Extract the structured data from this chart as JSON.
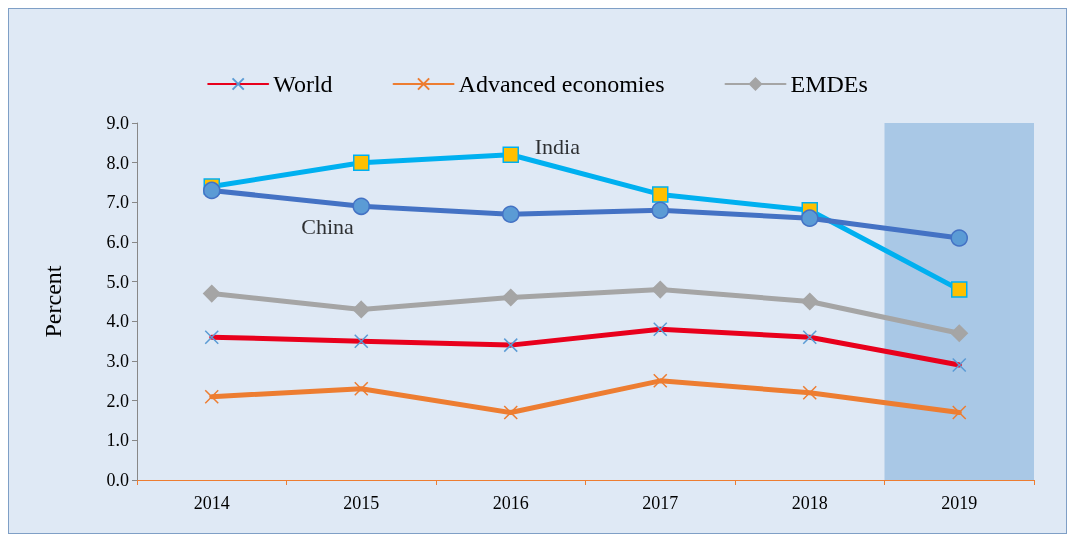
{
  "chart_data": {
    "type": "line",
    "ylabel": "Percent",
    "categories": [
      "2014",
      "2015",
      "2016",
      "2017",
      "2018",
      "2019"
    ],
    "series": [
      {
        "name": "World",
        "color": "#e8001c",
        "marker": "cross",
        "values": [
          3.6,
          3.5,
          3.4,
          3.8,
          3.6,
          2.9
        ]
      },
      {
        "name": "Advanced economies",
        "color": "#ed7d31",
        "marker": "cross",
        "values": [
          2.1,
          2.3,
          1.7,
          2.5,
          2.2,
          1.7
        ]
      },
      {
        "name": "EMDEs",
        "color": "#a5a5a5",
        "marker": "diamond",
        "values": [
          4.7,
          4.3,
          4.6,
          4.8,
          4.5,
          3.7
        ]
      },
      {
        "color": "#4472c4",
        "marker": "circle",
        "values": [
          7.3,
          6.9,
          6.7,
          6.8,
          6.6,
          6.1
        ]
      },
      {
        "color": "#00b0f0",
        "marker": "square",
        "values": [
          7.4,
          8.0,
          8.2,
          7.2,
          6.8,
          4.8
        ]
      }
    ],
    "annotations": [
      {
        "text": "China",
        "x": "2015",
        "y": 6.9
      },
      {
        "text": "India",
        "x": "2016",
        "y": 8.2
      }
    ],
    "bands": [
      {
        "axis": "x",
        "from": "2019",
        "to": "2019",
        "color": "#a9c8e6"
      }
    ],
    "ylim": [
      0,
      9
    ],
    "yticks": [
      {
        "value": 0,
        "label": "0.0"
      },
      {
        "value": 1,
        "label": "1.0"
      },
      {
        "value": 2,
        "label": "2.0"
      },
      {
        "value": 3,
        "label": "3.0"
      },
      {
        "value": 4,
        "label": "4.0"
      },
      {
        "value": 5,
        "label": "5.0"
      },
      {
        "value": 6,
        "label": "6.0"
      },
      {
        "value": 7,
        "label": "7.0"
      },
      {
        "value": 8,
        "label": "8.0"
      },
      {
        "value": 9,
        "label": "9.0"
      }
    ],
    "grid": false,
    "legend": "top"
  }
}
